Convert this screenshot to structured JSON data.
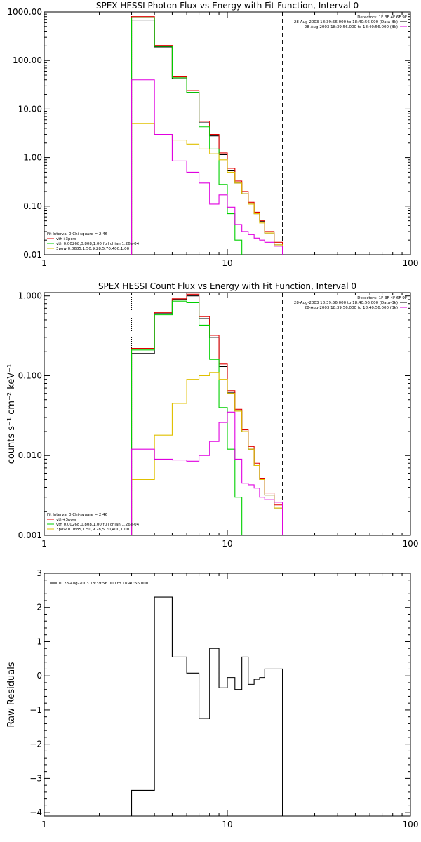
{
  "chart_data": [
    {
      "id": "photon",
      "type": "line",
      "title": "SPEX HESSI Photon Flux vs Energy with Fit Function, Interval 0",
      "xlabel": "",
      "ylabel": "",
      "xscale": "log",
      "yscale": "log",
      "xlim": [
        1,
        100
      ],
      "ylim": [
        0.01,
        1000
      ],
      "xticks": [
        1,
        10,
        100
      ],
      "xtick_labels": [
        "1",
        "10",
        "100"
      ],
      "yticks": [
        0.01,
        0.1,
        1,
        10,
        100,
        1000
      ],
      "ytick_labels": [
        "0.01",
        "0.10",
        "1.00",
        "10.00",
        "100.00",
        "1000.00"
      ],
      "legend_top_right": {
        "header": "Detectors: 1F 3F 4F 6F 9F",
        "entries": [
          {
            "label": "28-Aug-2003 18:39:56.000 to 18:40:56.000 (Data-Bk)",
            "color": "#000000"
          },
          {
            "label": "28-Aug-2003 18:39:56.000 to 18:40:56.000 (Bk)",
            "color": "#e000e0"
          }
        ]
      },
      "legend_bottom_left": {
        "header": "Fit Interval 0   Chi-square = 2.46",
        "entries": [
          {
            "label": "vth+3pow",
            "color": "#e00000"
          },
          {
            "label": "vth 0.00268,0.808,1.00   full chian 1.26e-04",
            "color": "#00d000"
          },
          {
            "label": "3pow 0.0685,1.50,9.28,5.70,400,1.00",
            "color": "#e0c000"
          }
        ]
      },
      "vlines": [
        {
          "x": 3,
          "style": "dotted"
        },
        {
          "x": 20,
          "style": "dashed"
        }
      ],
      "bin_edges": [
        3,
        4,
        5,
        6,
        7,
        8,
        9,
        10,
        11,
        12,
        13,
        14,
        15,
        16,
        18,
        20
      ],
      "series": [
        {
          "name": "",
          "color": "#000000",
          "values": [
            680,
            190,
            42,
            22,
            5.2,
            2.8,
            1.15,
            0.55,
            0.3,
            0.18,
            0.11,
            0.07,
            0.048,
            0.028,
            0.016
          ]
        },
        {
          "name": "",
          "color": "#e00000",
          "values": [
            800,
            205,
            46,
            24,
            5.6,
            3.0,
            1.25,
            0.6,
            0.33,
            0.2,
            0.12,
            0.075,
            0.05,
            0.03,
            0.018
          ]
        },
        {
          "name": "",
          "color": "#00d000",
          "values": [
            760,
            195,
            44,
            22,
            4.3,
            1.5,
            0.28,
            0.07,
            0.02,
            0.009
          ]
        },
        {
          "name": "",
          "color": "#e0c000",
          "values": [
            5,
            3,
            2.3,
            1.9,
            1.5,
            1.2,
            0.9,
            0.5,
            0.3,
            0.18,
            0.11,
            0.07,
            0.045,
            0.028,
            0.016
          ]
        },
        {
          "name": "",
          "color": "#e000e0",
          "values": [
            40,
            3,
            0.85,
            0.5,
            0.3,
            0.11,
            0.17,
            0.095,
            0.042,
            0.03,
            0.026,
            0.022,
            0.02,
            0.018,
            0.015
          ]
        }
      ]
    },
    {
      "id": "count",
      "type": "line",
      "title": "SPEX HESSI Count Flux vs Energy with Fit Function, Interval 0",
      "xlabel": "",
      "ylabel": "counts s⁻¹ cm⁻² keV⁻¹",
      "xscale": "log",
      "yscale": "log",
      "xlim": [
        1,
        100
      ],
      "ylim": [
        0.001,
        1.1
      ],
      "xticks": [
        1,
        10,
        100
      ],
      "xtick_labels": [
        "1",
        "10",
        "100"
      ],
      "yticks": [
        0.001,
        0.01,
        0.1,
        1
      ],
      "ytick_labels": [
        "0.001",
        "0.010",
        "0.100",
        "1.000"
      ],
      "legend_top_right": {
        "header": "Detectors: 1F 3F 4F 6F 9F",
        "entries": [
          {
            "label": "28-Aug-2003 18:39:56.000 to 18:40:56.000 (Data-Bk)",
            "color": "#000000"
          },
          {
            "label": "28-Aug-2003 18:39:56.000 to 18:40:56.000 (Bk)",
            "color": "#e000e0"
          }
        ]
      },
      "legend_bottom_left": {
        "header": "Fit Interval 0   Chi-square = 2.46",
        "entries": [
          {
            "label": "vth+3pow",
            "color": "#e00000"
          },
          {
            "label": "vth 0.00268,0.808,1.00   full chian 1.26e-04",
            "color": "#00d000"
          },
          {
            "label": "3pow 0.0685,1.50,9.28,5.70,400,1.00",
            "color": "#e0c000"
          }
        ]
      },
      "vlines": [
        {
          "x": 3,
          "style": "dotted"
        },
        {
          "x": 20,
          "style": "dashed"
        }
      ],
      "bin_edges": [
        3,
        4,
        5,
        6,
        7,
        8,
        9,
        10,
        11,
        12,
        13,
        14,
        15,
        16,
        18,
        20,
        22
      ],
      "series": [
        {
          "name": "",
          "color": "#000000",
          "values": [
            0.19,
            0.6,
            0.9,
            1.0,
            0.52,
            0.3,
            0.13,
            0.061,
            0.036,
            0.02,
            0.012,
            0.0075,
            0.005,
            0.0032,
            0.0022,
            0.001
          ]
        },
        {
          "name": "",
          "color": "#e00000",
          "values": [
            0.22,
            0.62,
            0.92,
            1.05,
            0.55,
            0.32,
            0.14,
            0.065,
            0.038,
            0.021,
            0.013,
            0.008,
            0.0052,
            0.0034,
            0.0024,
            0.001
          ]
        },
        {
          "name": "",
          "color": "#00d000",
          "values": [
            0.21,
            0.58,
            0.86,
            0.82,
            0.43,
            0.16,
            0.04,
            0.012,
            0.003,
            0.001
          ]
        },
        {
          "name": "",
          "color": "#e0c000",
          "values": [
            0.005,
            0.018,
            0.045,
            0.09,
            0.1,
            0.11,
            0.09,
            0.06,
            0.036,
            0.02,
            0.012,
            0.0075,
            0.005,
            0.0032,
            0.0022,
            0.001
          ]
        },
        {
          "name": "",
          "color": "#e000e0",
          "values": [
            0.012,
            0.009,
            0.0088,
            0.0085,
            0.01,
            0.015,
            0.026,
            0.035,
            0.009,
            0.0045,
            0.0043,
            0.0039,
            0.003,
            0.0028,
            0.0026,
            0.001
          ]
        }
      ]
    },
    {
      "id": "residuals",
      "type": "line",
      "title": "",
      "xlabel": "",
      "ylabel": "Raw Residuals",
      "xscale": "log",
      "yscale": "linear",
      "xlim": [
        1,
        100
      ],
      "ylim": [
        -4.1,
        3
      ],
      "xticks": [
        1,
        10,
        100
      ],
      "xtick_labels": [
        "1",
        "10",
        "100"
      ],
      "yticks": [
        -4,
        -3,
        -2,
        -1,
        0,
        1,
        2,
        3
      ],
      "ytick_labels": [
        "−4",
        "−3",
        "−2",
        "−1",
        "0",
        "1",
        "2",
        "3"
      ],
      "legend_top_left": {
        "entries": [
          {
            "label": "0. 28-Aug-2003 18:39:56.000 to 18:40:56.000",
            "color": "#000000"
          }
        ]
      },
      "bin_edges": [
        3,
        4,
        5,
        6,
        7,
        8,
        9,
        10,
        11,
        12,
        13,
        14,
        15,
        16,
        18,
        20
      ],
      "series": [
        {
          "name": "",
          "color": "#000000",
          "values": [
            -3.35,
            2.3,
            0.55,
            0.08,
            -1.25,
            0.8,
            -0.35,
            -0.05,
            -0.4,
            0.55,
            -0.25,
            -0.1,
            -0.05,
            0.2,
            0.2
          ]
        }
      ]
    }
  ]
}
